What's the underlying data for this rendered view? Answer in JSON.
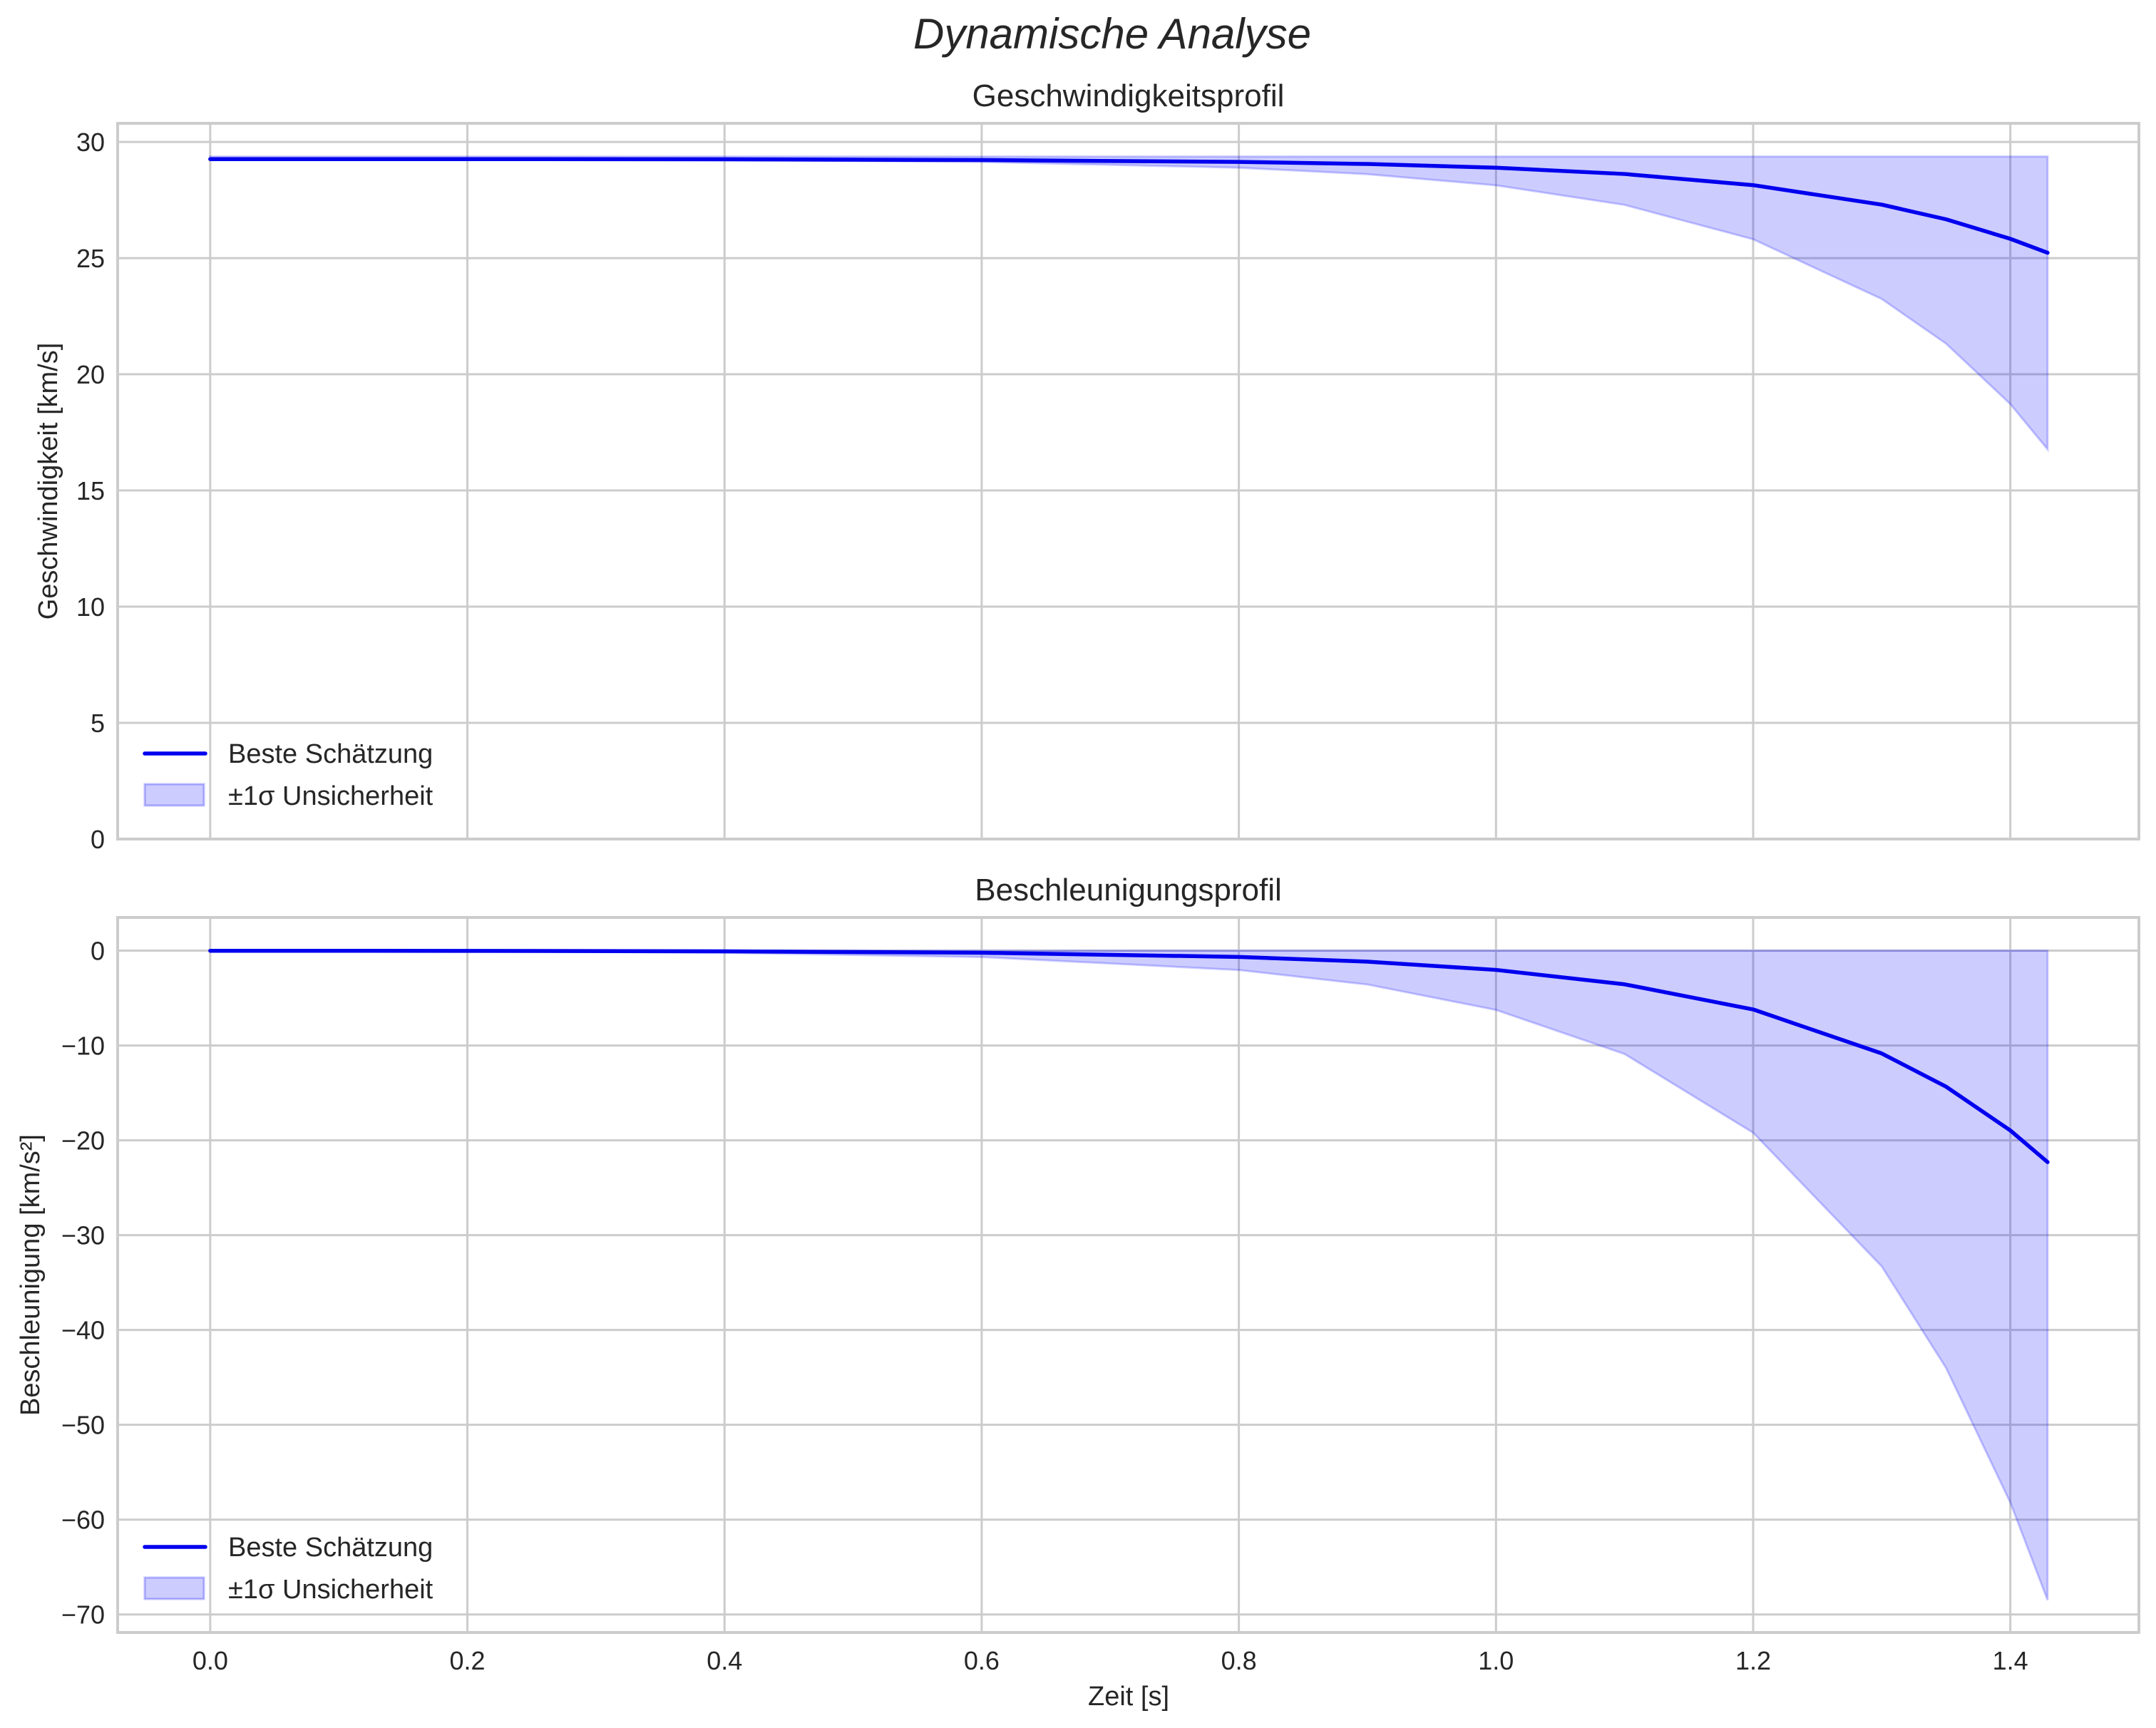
{
  "figure": {
    "suptitle": "Dynamische Analyse",
    "xlabel": "Zeit [s]"
  },
  "colors": {
    "line": "#0000ee",
    "band_fill": "#0000ff",
    "band_alpha": 0.2,
    "grid": "#cccccc",
    "spine": "#cccccc",
    "text": "#262626"
  },
  "legend": {
    "line_label": "Beste Schätzung",
    "band_label": "±1σ Unsicherheit"
  },
  "chart_data": [
    {
      "type": "line",
      "title": "Geschwindigkeitsprofil",
      "xlabel": "",
      "ylabel": "Geschwindigkeit [km/s]",
      "xlim": [
        -0.072,
        1.5
      ],
      "ylim": [
        0,
        30.8
      ],
      "xticks": [
        0.0,
        0.2,
        0.4,
        0.6,
        0.8,
        1.0,
        1.2,
        1.4
      ],
      "xtick_labels_visible": false,
      "yticks": [
        0,
        5,
        10,
        15,
        20,
        25,
        30
      ],
      "ytick_labels": [
        "0",
        "5",
        "10",
        "15",
        "20",
        "25",
        "30"
      ],
      "grid": true,
      "legend_position": "lower left",
      "x": [
        0.0,
        0.2,
        0.4,
        0.6,
        0.8,
        0.9,
        1.0,
        1.1,
        1.2,
        1.3,
        1.35,
        1.4,
        1.429
      ],
      "series": [
        {
          "name": "Beste Schätzung",
          "values": [
            29.26,
            29.26,
            29.25,
            29.22,
            29.14,
            29.05,
            28.89,
            28.62,
            28.14,
            27.3,
            26.67,
            25.83,
            25.23
          ]
        },
        {
          "name": "±1σ Unsicherheit (oben)",
          "values": [
            29.37,
            29.37,
            29.37,
            29.37,
            29.37,
            29.37,
            29.37,
            29.37,
            29.37,
            29.37,
            29.37,
            29.37,
            29.37
          ]
        },
        {
          "name": "±1σ Unsicherheit (unten)",
          "values": [
            29.25,
            29.24,
            29.22,
            29.14,
            28.89,
            28.61,
            28.13,
            27.29,
            25.81,
            23.24,
            21.32,
            18.72,
            16.77
          ]
        }
      ]
    },
    {
      "type": "line",
      "title": "Beschleunigungsprofil",
      "xlabel": "Zeit [s]",
      "ylabel": "Beschleunigung [km/s²]",
      "xlim": [
        -0.072,
        1.5
      ],
      "ylim": [
        -71.9,
        3.5
      ],
      "xticks": [
        0.0,
        0.2,
        0.4,
        0.6,
        0.8,
        1.0,
        1.2,
        1.4
      ],
      "xtick_labels": [
        "0.0",
        "0.2",
        "0.4",
        "0.6",
        "0.8",
        "1.0",
        "1.2",
        "1.4"
      ],
      "yticks": [
        0,
        -10,
        -20,
        -30,
        -40,
        -50,
        -60,
        -70
      ],
      "ytick_labels": [
        "0",
        "−10",
        "−20",
        "−30",
        "−40",
        "−50",
        "−60",
        "−70"
      ],
      "grid": true,
      "legend_position": "lower left",
      "x": [
        0.0,
        0.2,
        0.4,
        0.6,
        0.8,
        0.9,
        1.0,
        1.1,
        1.2,
        1.3,
        1.35,
        1.4,
        1.429
      ],
      "series": [
        {
          "name": "Beste Schätzung",
          "values": [
            -0.01,
            -0.02,
            -0.07,
            -0.22,
            -0.66,
            -1.16,
            -2.03,
            -3.55,
            -6.2,
            -10.84,
            -14.34,
            -18.96,
            -22.3
          ]
        },
        {
          "name": "±1σ Unsicherheit (oben)",
          "values": [
            0,
            0,
            0,
            0,
            0,
            0,
            0,
            0,
            0,
            0,
            0,
            0,
            0
          ]
        },
        {
          "name": "±1σ Unsicherheit (unten)",
          "values": [
            -0.02,
            -0.07,
            -0.22,
            -0.67,
            -2.04,
            -3.57,
            -6.25,
            -10.9,
            -19.2,
            -33.3,
            -44.0,
            -58.2,
            -68.5
          ]
        }
      ]
    }
  ]
}
